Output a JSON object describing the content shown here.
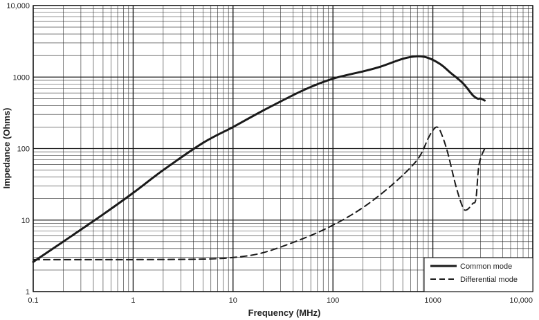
{
  "chart_data": {
    "type": "line",
    "title": "",
    "xlabel": "Frequency (MHz)",
    "ylabel": "Impedance (Ohms)",
    "x_scale": "log",
    "y_scale": "log",
    "xlim": [
      0.1,
      10000
    ],
    "ylim": [
      1,
      10000
    ],
    "grid": true,
    "legend_position": "bottom-right",
    "x_ticks": [
      {
        "value": 0.1,
        "label": "0.1"
      },
      {
        "value": 1,
        "label": "1"
      },
      {
        "value": 10,
        "label": "10"
      },
      {
        "value": 100,
        "label": "100"
      },
      {
        "value": 1000,
        "label": "1000"
      },
      {
        "value": 10000,
        "label": "10,000"
      }
    ],
    "y_ticks": [
      {
        "value": 1,
        "label": "1"
      },
      {
        "value": 10,
        "label": "10"
      },
      {
        "value": 100,
        "label": "100"
      },
      {
        "value": 1000,
        "label": "1000"
      },
      {
        "value": 10000,
        "label": "10,000"
      }
    ],
    "series": [
      {
        "name": "Common mode",
        "style": "solid",
        "color": "#1a1a1a",
        "points": [
          [
            0.1,
            2.6
          ],
          [
            0.2,
            5
          ],
          [
            0.5,
            12
          ],
          [
            1,
            24
          ],
          [
            2,
            50
          ],
          [
            5,
            120
          ],
          [
            10,
            200
          ],
          [
            20,
            340
          ],
          [
            50,
            650
          ],
          [
            100,
            950
          ],
          [
            200,
            1200
          ],
          [
            300,
            1400
          ],
          [
            500,
            1800
          ],
          [
            700,
            1950
          ],
          [
            900,
            1850
          ],
          [
            1200,
            1500
          ],
          [
            1500,
            1150
          ],
          [
            2000,
            820
          ],
          [
            2500,
            560
          ],
          [
            2800,
            500
          ],
          [
            3000,
            500
          ],
          [
            3300,
            470
          ]
        ]
      },
      {
        "name": "Differential mode",
        "style": "dashed",
        "color": "#1a1a1a",
        "points": [
          [
            0.1,
            2.8
          ],
          [
            0.5,
            2.8
          ],
          [
            1,
            2.8
          ],
          [
            5,
            2.85
          ],
          [
            10,
            3.0
          ],
          [
            20,
            3.5
          ],
          [
            50,
            5.5
          ],
          [
            100,
            8.5
          ],
          [
            200,
            15
          ],
          [
            400,
            32
          ],
          [
            700,
            70
          ],
          [
            900,
            140
          ],
          [
            1000,
            180
          ],
          [
            1100,
            200
          ],
          [
            1200,
            170
          ],
          [
            1400,
            90
          ],
          [
            1700,
            30
          ],
          [
            2000,
            15
          ],
          [
            2200,
            14
          ],
          [
            2500,
            17
          ],
          [
            2700,
            20
          ],
          [
            2900,
            60
          ],
          [
            3300,
            100
          ]
        ]
      }
    ]
  }
}
